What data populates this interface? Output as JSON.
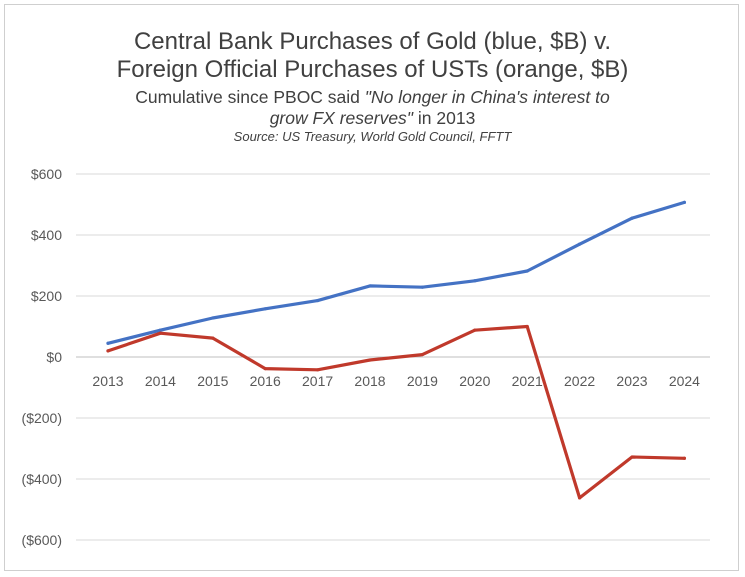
{
  "chart_data": {
    "type": "line",
    "title_line1": "Central Bank Purchases of Gold (blue, $B) v.",
    "title_line2": "Foreign Official Purchases of USTs (orange, $B)",
    "subtitle_prefix": "Cumulative since PBOC said ",
    "subtitle_quote_1": "\"No longer in China's interest to",
    "subtitle_quote_2": "grow FX reserves\"",
    "subtitle_suffix": " in 2013",
    "source": "Source: US Treasury, World Gold Council, FFTT",
    "categories": [
      "2013",
      "2014",
      "2015",
      "2016",
      "2017",
      "2018",
      "2019",
      "2020",
      "2021",
      "2022",
      "2023",
      "2024"
    ],
    "y_ticks": [
      {
        "value": 600,
        "label": "$600"
      },
      {
        "value": 400,
        "label": "$400"
      },
      {
        "value": 200,
        "label": "$200"
      },
      {
        "value": 0,
        "label": "$0"
      },
      {
        "value": -200,
        "label": "($200)"
      },
      {
        "value": -400,
        "label": "($400)"
      },
      {
        "value": -600,
        "label": "($600)"
      }
    ],
    "ylim": [
      -600,
      600
    ],
    "grid": true,
    "series": [
      {
        "color": "#4472c4",
        "values": [
          45,
          88,
          128,
          158,
          185,
          233,
          229,
          250,
          282,
          370,
          455,
          507
        ]
      },
      {
        "color": "#c0392b",
        "values": [
          20,
          78,
          62,
          -38,
          -42,
          -10,
          8,
          88,
          100,
          -462,
          -328,
          -332
        ]
      }
    ]
  }
}
